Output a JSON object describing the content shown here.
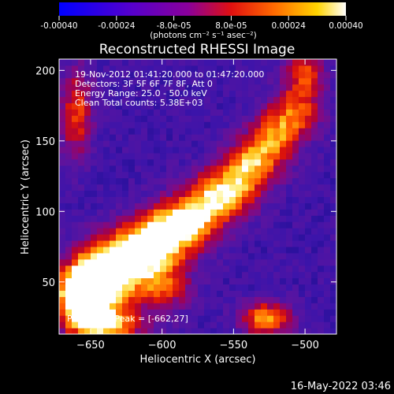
{
  "colorbar": {
    "tick_labels": [
      "-0.00040",
      "-0.00024",
      "-8.0e-05",
      "8.0e-05",
      "0.00024",
      "0.00040"
    ],
    "tick_values": [
      -0.0004,
      -0.00024,
      -8e-05,
      8e-05,
      0.00024,
      0.0004
    ],
    "range": [
      -0.0004,
      0.0004
    ],
    "units_label": "(photons cm⁻² s⁻¹ asec⁻²)"
  },
  "plot": {
    "title": "Reconstructed RHESSI Image",
    "xlabel": "Heliocentric X (arcsec)",
    "ylabel": "Heliocentric Y (arcsec)",
    "x_ticks": [
      -650,
      -600,
      -550,
      -500
    ],
    "y_ticks": [
      50,
      100,
      150,
      200
    ],
    "x_tick_labels": [
      "−650",
      "−600",
      "−550",
      "−500"
    ],
    "y_tick_labels": [
      "50",
      "100",
      "150",
      "200"
    ],
    "xlim": [
      -672,
      -478
    ],
    "ylim": [
      13,
      208
    ],
    "info_lines": [
      "19-Nov-2012 01:41:20.000 to 01:47:20.000",
      "Detectors: 3F 5F 6F 7F 8F, Att 0",
      "Energy Range: 25.0 - 50.0 keV",
      "Clean    Total counts: 5.38E+03"
    ],
    "peak_label": "Position of Peak = [-662,27]",
    "colormap": "blue-purple-red-yellow-white"
  },
  "footer": {
    "timestamp": "16-May-2022 03:46"
  },
  "chart_data": {
    "type": "heatmap",
    "title": "Reconstructed RHESSI Image",
    "xlabel": "Heliocentric X (arcsec)",
    "ylabel": "Heliocentric Y (arcsec)",
    "xlim": [
      -672,
      -478
    ],
    "ylim": [
      13,
      208
    ],
    "peak": [
      -662,
      27
    ],
    "sources": [
      {
        "x": -655,
        "y": 40,
        "amp": 1.0,
        "sx": 14,
        "sy": 14
      },
      {
        "x": -640,
        "y": 55,
        "amp": 0.95,
        "sx": 16,
        "sy": 14
      },
      {
        "x": -612,
        "y": 73,
        "amp": 0.9,
        "sx": 20,
        "sy": 13
      },
      {
        "x": -586,
        "y": 92,
        "amp": 0.82,
        "sx": 18,
        "sy": 12
      },
      {
        "x": -560,
        "y": 112,
        "amp": 0.72,
        "sx": 16,
        "sy": 12
      },
      {
        "x": -540,
        "y": 132,
        "amp": 0.62,
        "sx": 13,
        "sy": 13
      },
      {
        "x": -522,
        "y": 152,
        "amp": 0.55,
        "sx": 12,
        "sy": 14
      },
      {
        "x": -505,
        "y": 172,
        "amp": 0.5,
        "sx": 12,
        "sy": 14
      },
      {
        "x": -500,
        "y": 200,
        "amp": 0.45,
        "sx": 10,
        "sy": 10
      },
      {
        "x": -660,
        "y": 170,
        "amp": 0.5,
        "sx": 8,
        "sy": 22
      },
      {
        "x": -527,
        "y": 24,
        "amp": 0.7,
        "sx": 12,
        "sy": 8
      },
      {
        "x": -640,
        "y": 20,
        "amp": 0.75,
        "sx": 18,
        "sy": 8
      },
      {
        "x": -600,
        "y": 45,
        "amp": 0.45,
        "sx": 14,
        "sy": 12
      }
    ]
  }
}
